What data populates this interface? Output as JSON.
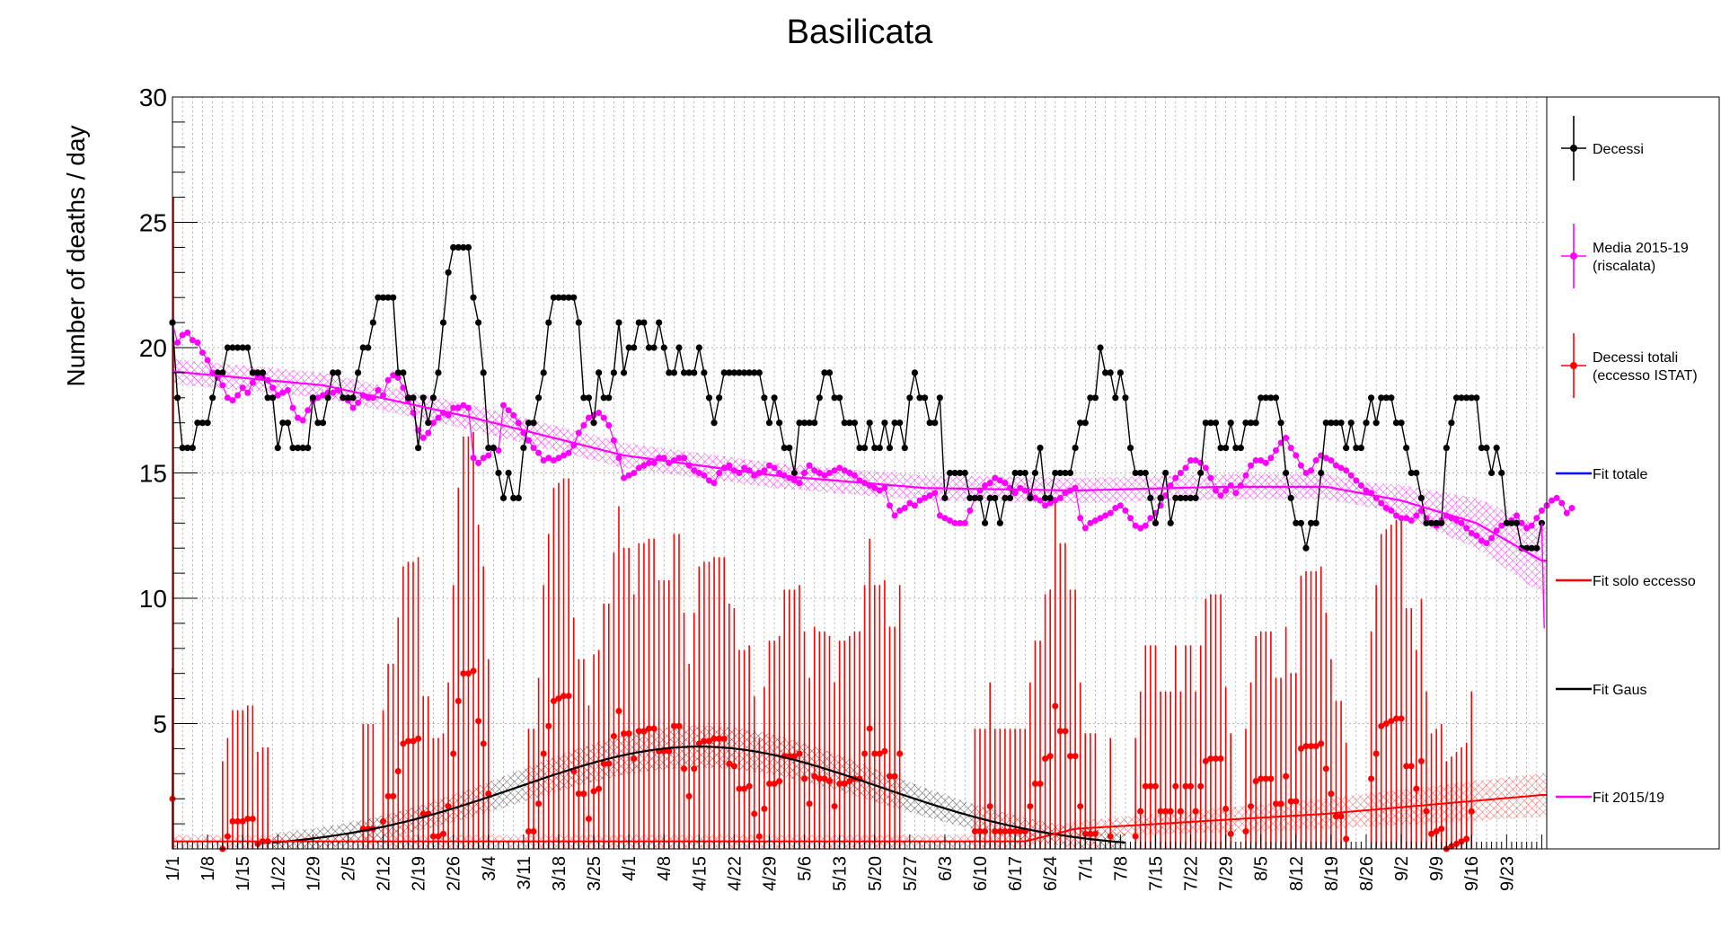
{
  "chart_data": {
    "type": "line",
    "title": "Basilicata",
    "xlabel": "",
    "ylabel": "Number of deaths / day",
    "ylim": [
      0,
      30
    ],
    "y_ticks": [
      5,
      10,
      15,
      20,
      25,
      30
    ],
    "x_start": "1/1",
    "x_days": 274,
    "x_tick_labels": [
      "1/1",
      "1/8",
      "1/15",
      "1/22",
      "1/29",
      "2/5",
      "2/12",
      "2/19",
      "2/26",
      "3/4",
      "3/11",
      "3/18",
      "3/25",
      "4/1",
      "4/8",
      "4/15",
      "4/22",
      "4/29",
      "5/6",
      "5/13",
      "5/20",
      "5/27",
      "6/3",
      "6/10",
      "6/17",
      "6/24",
      "7/1",
      "7/8",
      "7/15",
      "7/22",
      "7/29",
      "8/5",
      "8/12",
      "8/19",
      "8/26",
      "9/2",
      "9/9",
      "9/16",
      "9/23"
    ],
    "grid": true,
    "legend_position": "right",
    "legend": [
      {
        "label": "Decessi",
        "color": "#000000",
        "style": "marker-errorbar"
      },
      {
        "label": "Media 2015-19\n(riscalata)",
        "color": "#ff00ff",
        "style": "marker-errorbar"
      },
      {
        "label": "Decessi totali\n(eccesso ISTAT)",
        "color": "#ff0000",
        "style": "marker-errorbar"
      },
      {
        "label": "Fit totale",
        "color": "#0000ff",
        "style": "line"
      },
      {
        "label": "Fit solo eccesso",
        "color": "#ff0000",
        "style": "line"
      },
      {
        "label": "Fit Gaus",
        "color": "#000000",
        "style": "line"
      },
      {
        "label": "Fit 2015/19",
        "color": "#ff00ff",
        "style": "line"
      }
    ],
    "series": [
      {
        "name": "Decessi",
        "color": "#000000",
        "x_day_start": 0,
        "values": [
          21,
          18,
          16,
          16,
          16,
          17,
          17,
          17,
          18,
          19,
          19,
          20,
          20,
          20,
          20,
          20,
          19,
          19,
          19,
          18,
          18,
          16,
          17,
          17,
          16,
          16,
          16,
          16,
          18,
          17,
          17,
          18,
          19,
          19,
          18,
          18,
          18,
          19,
          20,
          20,
          21,
          22,
          22,
          22,
          22,
          19,
          19,
          18,
          18,
          16,
          18,
          17,
          18,
          19,
          21,
          23,
          24,
          24,
          24,
          24,
          22,
          21,
          19,
          16,
          16,
          15,
          14,
          15,
          14,
          14,
          16,
          17,
          17,
          18,
          19,
          21,
          22,
          22,
          22,
          22,
          22,
          21,
          18,
          18,
          17,
          19,
          18,
          18,
          19,
          21,
          19,
          20,
          20,
          21,
          21,
          20,
          20,
          21,
          20,
          19,
          19,
          20,
          19,
          19,
          19,
          20,
          19,
          18,
          17,
          18,
          19,
          19,
          19,
          19,
          19,
          19,
          19,
          19,
          18,
          17,
          18,
          17,
          16,
          16,
          15,
          17,
          17,
          17,
          17,
          18,
          19,
          19,
          18,
          18,
          17,
          17,
          17,
          16,
          16,
          17,
          16,
          16,
          17,
          16,
          17,
          17,
          16,
          18,
          19,
          18,
          18,
          17,
          17,
          18,
          14,
          15,
          15,
          15,
          15,
          14,
          14,
          14,
          13,
          14,
          14,
          13,
          14,
          14,
          15,
          15,
          15,
          14,
          15,
          16,
          14,
          14,
          15,
          15,
          15,
          15,
          16,
          17,
          17,
          18,
          18,
          20,
          19,
          19,
          18,
          19,
          18,
          16,
          15,
          15,
          15,
          14,
          13,
          14,
          15,
          13,
          14,
          14,
          14,
          14,
          14,
          15,
          17,
          17,
          17,
          16,
          16,
          17,
          16,
          16,
          17,
          17,
          17,
          18,
          18,
          18,
          18,
          17,
          15,
          14,
          13,
          13,
          12,
          13,
          13,
          15,
          17,
          17,
          17,
          17,
          16,
          17,
          16,
          16,
          17,
          18,
          17,
          18,
          18,
          18,
          17,
          17,
          16,
          15,
          15,
          14,
          13,
          13,
          13,
          13,
          16,
          17,
          18,
          18,
          18,
          18,
          18,
          16,
          16,
          15,
          16,
          15,
          13,
          13,
          13,
          12,
          12,
          12,
          12,
          13
        ]
      },
      {
        "name": "Media 2015-19 (riscalata)",
        "color": "#ff00ff",
        "x_day_start": 0,
        "values": [
          21,
          20.2,
          20.5,
          20.6,
          20.3,
          20.2,
          19.8,
          19.5,
          19,
          18.8,
          18.5,
          18,
          17.9,
          18.1,
          18.4,
          18.2,
          18.6,
          18.9,
          18.8,
          18.7,
          18.4,
          18.1,
          18.2,
          18.3,
          17.6,
          17.2,
          17.1,
          17.5,
          17.9,
          18,
          18.1,
          18.2,
          18.2,
          18.3,
          18,
          17.9,
          17.6,
          17.8,
          18.1,
          18,
          18,
          18.3,
          18.1,
          18.7,
          18.9,
          18.8,
          18.4,
          17.9,
          17.4,
          16.7,
          16.4,
          16.6,
          17,
          17.2,
          17.4,
          17.3,
          17.6,
          17.6,
          17.7,
          17.6,
          15.6,
          15.4,
          15.6,
          15.7,
          16,
          15.9,
          17.7,
          17.5,
          17.3,
          17,
          16.6,
          16.3,
          16,
          15.8,
          15.5,
          15.6,
          15.5,
          15.6,
          15.7,
          15.8,
          16.1,
          16.6,
          16.9,
          17.2,
          17.3,
          17.4,
          17.2,
          16.9,
          16.3,
          15.6,
          14.8,
          14.9,
          15,
          15.2,
          15.3,
          15.4,
          15.4,
          15.6,
          15.6,
          15.4,
          15.5,
          15.6,
          15.6,
          15.3,
          15.1,
          15,
          14.9,
          14.7,
          14.6,
          15,
          15.2,
          15.3,
          15.1,
          15,
          15.2,
          15.1,
          14.9,
          15,
          15.1,
          15.3,
          15.2,
          15,
          14.9,
          14.8,
          14.7,
          14.6,
          15,
          15.3,
          15.1,
          15,
          14.9,
          15,
          15.1,
          15.2,
          15.1,
          15,
          14.9,
          14.7,
          14.6,
          14.5,
          14.4,
          14.3,
          14.4,
          13.7,
          13.3,
          13.5,
          13.6,
          13.8,
          13.7,
          13.9,
          14,
          14.1,
          14.2,
          13.3,
          13.2,
          13.1,
          13,
          13,
          13,
          13.5,
          14,
          14.3,
          14.5,
          14.6,
          14.8,
          14.7,
          14.6,
          14.4,
          14.2,
          14.4,
          14.3,
          14.1,
          14,
          13.9,
          13.7,
          13.8,
          13.9,
          14,
          14.2,
          14.3,
          14.4,
          13.2,
          12.8,
          13,
          13.1,
          13.2,
          13.3,
          13.4,
          13.6,
          13.7,
          13.5,
          13.2,
          12.9,
          12.8,
          12.9,
          13.2,
          13.4,
          13.7,
          14.1,
          14.5,
          14.8,
          15,
          15.2,
          15.5,
          15.5,
          15.4,
          15.2,
          14.8,
          14.3,
          14.1,
          14.3,
          14.5,
          14.2,
          14.5,
          14.9,
          15.3,
          15.5,
          15.5,
          15.4,
          15.6,
          15.9,
          16.2,
          16.4,
          16,
          15.7,
          15.3,
          15,
          15.1,
          15.5,
          15.7,
          15.6,
          15.5,
          15.3,
          15.2,
          15.1,
          14.9,
          14.7,
          14.5,
          14.3,
          14.2,
          14,
          13.8,
          13.6,
          13.5,
          13.3,
          13.2,
          13.2,
          13.1,
          13.3,
          13.5,
          13.2,
          13,
          12.9,
          13.1,
          13.3,
          13.2,
          13.1,
          13,
          12.8,
          12.6,
          12.5,
          12.3,
          12.2,
          12.4,
          12.7,
          12.9,
          13,
          13.1,
          13.3,
          13,
          12.8,
          12.9,
          13.2,
          13.5,
          13.7,
          13.9,
          14,
          13.8,
          13.4,
          13.6
        ]
      },
      {
        "name": "Decessi totali (eccesso ISTAT)",
        "color": "#ff0000",
        "x_day_start": 0,
        "values": [
          2,
          null,
          null,
          null,
          null,
          null,
          null,
          null,
          null,
          null,
          0,
          0.5,
          1.1,
          1.1,
          1.1,
          1.2,
          1.2,
          0.2,
          0.3,
          0.3,
          null,
          null,
          null,
          null,
          null,
          null,
          null,
          null,
          null,
          null,
          null,
          null,
          null,
          null,
          null,
          null,
          null,
          null,
          0.8,
          0.8,
          0.8,
          null,
          1.1,
          2.1,
          2.1,
          3.1,
          4.2,
          4.3,
          4.3,
          4.4,
          1.4,
          1.4,
          0.5,
          0.5,
          0.6,
          1.7,
          3.8,
          5.9,
          7,
          7,
          7.1,
          5.1,
          4.2,
          2.2,
          null,
          null,
          null,
          null,
          null,
          null,
          null,
          0.7,
          0.7,
          1.8,
          3.8,
          4.9,
          5.9,
          6,
          6.1,
          6.1,
          3.1,
          2.2,
          2.2,
          1.2,
          2.3,
          2.4,
          3.4,
          3.4,
          4.5,
          5.5,
          4.6,
          4.6,
          3.6,
          4.7,
          4.7,
          4.8,
          4.8,
          3.9,
          3.9,
          3.9,
          4.9,
          4.9,
          3.2,
          2.1,
          3.2,
          4.2,
          4.3,
          4.3,
          4.4,
          4.4,
          4.4,
          3.4,
          3.3,
          2.4,
          2.4,
          2.5,
          1.4,
          0.5,
          1.6,
          2.6,
          2.6,
          2.7,
          3.7,
          3.7,
          3.7,
          3.8,
          2.8,
          1.8,
          2.9,
          2.8,
          2.8,
          2.7,
          1.7,
          2.6,
          2.6,
          2.7,
          2.8,
          2.8,
          3.8,
          4.8,
          3.8,
          3.8,
          3.9,
          2.9,
          2.9,
          3.8,
          null,
          null,
          null,
          null,
          null,
          null,
          null,
          null,
          null,
          null,
          null,
          null,
          null,
          null,
          0.7,
          0.7,
          0.7,
          1.7,
          0.7,
          0.7,
          0.7,
          0.7,
          0.7,
          0.7,
          0.7,
          1.7,
          2.6,
          2.6,
          3.6,
          3.7,
          5.7,
          4.7,
          4.7,
          3.7,
          3.7,
          1.7,
          0.6,
          0.6,
          0.6,
          null,
          null,
          0.5,
          null,
          null,
          null,
          null,
          0.5,
          1.5,
          2.5,
          2.5,
          2.5,
          1.5,
          1.5,
          1.5,
          2.5,
          1.5,
          2.5,
          2.5,
          1.5,
          2.5,
          3.5,
          3.6,
          3.6,
          3.6,
          1.6,
          0.6,
          null,
          null,
          0.7,
          1.7,
          2.7,
          2.8,
          2.8,
          2.8,
          1.8,
          1.8,
          2.9,
          1.9,
          1.9,
          4,
          4.1,
          4.1,
          4.1,
          4.2,
          3.2,
          2.2,
          1.3,
          1.3,
          0.4,
          null,
          null,
          null,
          null,
          2.8,
          3.8,
          4.9,
          5,
          5.1,
          5.2,
          5.2,
          3.3,
          3.3,
          2.4,
          3.5,
          1.5,
          0.6,
          0.7,
          0.8,
          0,
          0.1,
          0.2,
          0.3,
          0.4,
          1.5
        ]
      },
      {
        "name": "Fit Gaus",
        "color": "#000000",
        "gauss_amplitude": 4.08,
        "gauss_mean_day": 105,
        "gauss_sigma_days": 36,
        "x_day_range": [
          20,
          190
        ]
      },
      {
        "name": "Fit 2015/19",
        "color": "#ff00ff",
        "curve_points": [
          [
            0,
            19.05
          ],
          [
            30,
            18.5
          ],
          [
            60,
            17.2
          ],
          [
            90,
            15.7
          ],
          [
            120,
            14.9
          ],
          [
            150,
            14.4
          ],
          [
            180,
            14.3
          ],
          [
            210,
            14.45
          ],
          [
            230,
            14.45
          ],
          [
            245,
            13.9
          ],
          [
            260,
            13.0
          ],
          [
            273,
            11.5
          ]
        ]
      },
      {
        "name": "Fit solo eccesso",
        "color": "#ff0000",
        "curve_points": [
          [
            0,
            0.3
          ],
          [
            170,
            0.3
          ],
          [
            180,
            0.8
          ],
          [
            230,
            1.4
          ],
          [
            273,
            2.15
          ]
        ]
      },
      {
        "name": "Fit totale",
        "color": "#0000ff",
        "curve_points": []
      }
    ]
  }
}
